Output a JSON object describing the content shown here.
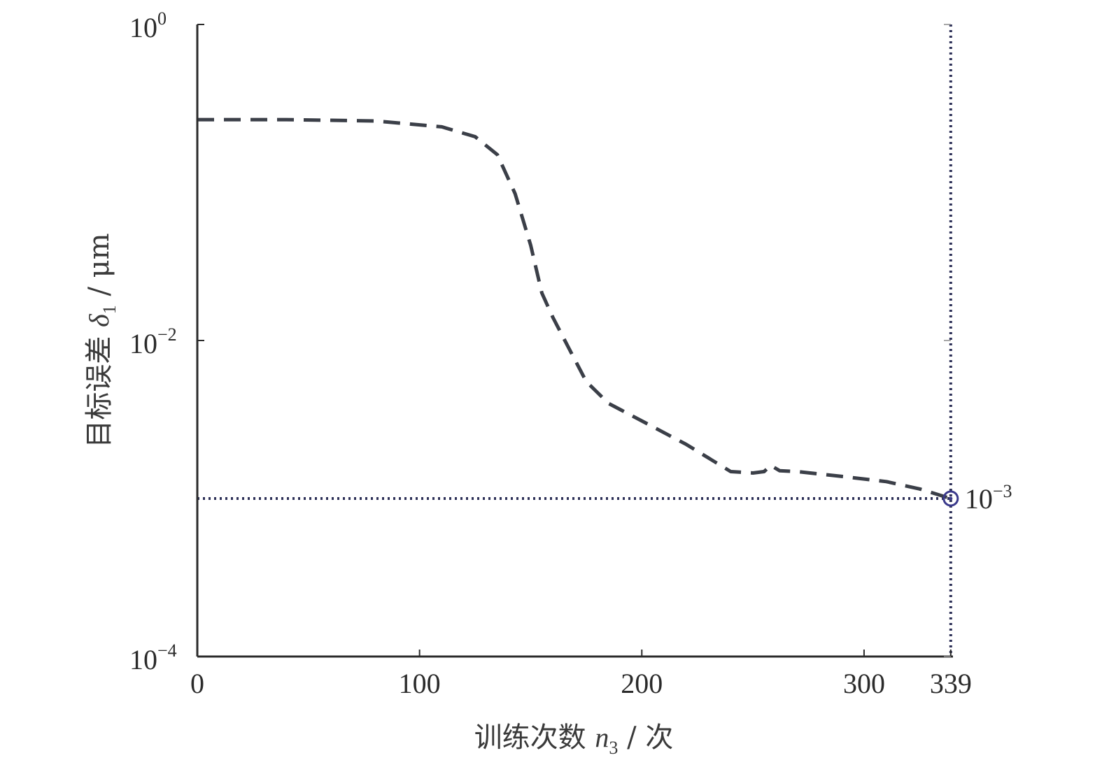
{
  "chart_data": {
    "type": "line",
    "xlabel": {
      "prefix": "训练次数 ",
      "var": "n",
      "sub": "3",
      "suffix": " / 次"
    },
    "ylabel": {
      "prefix": "目标误差 ",
      "var": "δ",
      "sub": "1",
      "suffix": " / μm"
    },
    "xlim": [
      0,
      340
    ],
    "ylim": [
      0.0001,
      1
    ],
    "yscale": "log",
    "x_ticks": [
      {
        "value": 0,
        "label": "0"
      },
      {
        "value": 100,
        "label": "100"
      },
      {
        "value": 200,
        "label": "200"
      },
      {
        "value": 300,
        "label": "300"
      },
      {
        "value": 339,
        "label": "339"
      }
    ],
    "y_ticks": [
      {
        "value": 1,
        "base": "10",
        "exp": "0"
      },
      {
        "value": 0.01,
        "base": "10",
        "exp": "−2"
      },
      {
        "value": 0.0001,
        "base": "10",
        "exp": "−4"
      }
    ],
    "grid": false,
    "series": [
      {
        "style": "dashed",
        "color": "#3b3f48",
        "x": [
          0,
          40,
          80,
          110,
          125,
          135,
          143,
          150,
          155,
          160,
          168,
          175,
          185,
          200,
          220,
          240,
          250,
          255,
          258,
          262,
          270,
          290,
          310,
          325,
          339
        ],
        "y": [
          0.25,
          0.25,
          0.245,
          0.225,
          0.195,
          0.15,
          0.085,
          0.04,
          0.02,
          0.014,
          0.0085,
          0.0055,
          0.004,
          0.0031,
          0.0022,
          0.00148,
          0.00145,
          0.00148,
          0.00162,
          0.0015,
          0.00148,
          0.00138,
          0.00128,
          0.00115,
          0.001
        ]
      }
    ],
    "reference_lines": {
      "horizontal_y": 0.001,
      "vertical_x": 339,
      "style": "dotted",
      "color": "#2e3158"
    },
    "marker": {
      "x": 339,
      "y": 0.001,
      "shape": "circle",
      "color": "#3b3a8c",
      "label_base": "10",
      "label_exp": "−3"
    }
  }
}
